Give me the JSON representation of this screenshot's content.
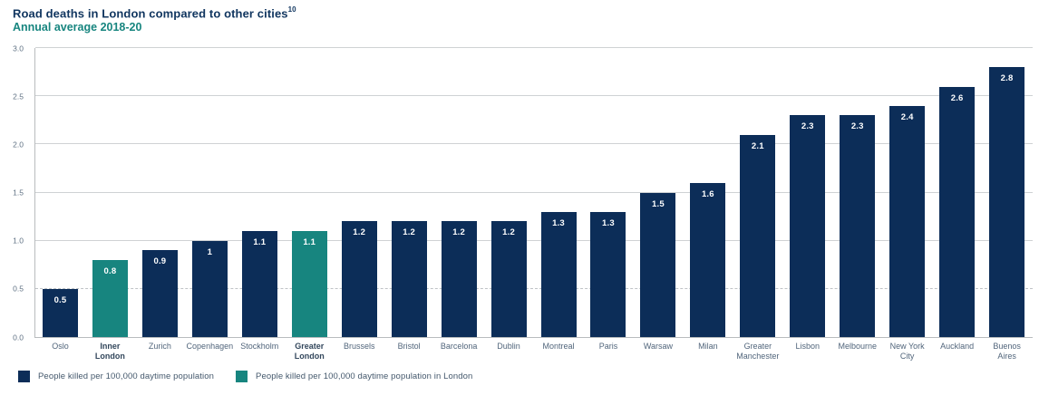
{
  "header": {
    "title": "Road deaths in London compared to other cities",
    "footnote_marker": "10",
    "subtitle": "Annual average 2018-20"
  },
  "colors": {
    "navy": "#0c2d58",
    "teal": "#17857f",
    "title_text": "#10355f",
    "subtitle_text": "#17857f",
    "gridline": "#cfd2d4",
    "axis_line": "#b9bcbe",
    "tick_label": "#5f7183",
    "city_label": "#51657b",
    "bar_value_text": "#ffffff"
  },
  "legend": [
    {
      "label": "People killed per 100,000 daytime population",
      "color": "#0c2d58"
    },
    {
      "label": "People killed per 100,000 daytime population in London",
      "color": "#17857f"
    }
  ],
  "chart_data": {
    "type": "bar",
    "title": "Road deaths in London compared to other cities",
    "subtitle": "Annual average 2018-20",
    "xlabel": "",
    "ylabel": "",
    "ylim": [
      0,
      3.0
    ],
    "ytick_labels": [
      "0.0",
      "0.5",
      "1.0",
      "1.5",
      "2.0",
      "2.5",
      "3.0"
    ],
    "grid": "horizontal",
    "dashed_gridline_value": 0.5,
    "legend_position": "bottom-left",
    "categories": [
      "Oslo",
      "Inner London",
      "Zurich",
      "Copenhagen",
      "Stockholm",
      "Greater London",
      "Brussels",
      "Bristol",
      "Barcelona",
      "Dublin",
      "Montreal",
      "Paris",
      "Warsaw",
      "Milan",
      "Greater Manchester",
      "Lisbon",
      "Melbourne",
      "New York City",
      "Auckland",
      "Buenos Aires"
    ],
    "values": [
      0.5,
      0.8,
      0.9,
      1.0,
      1.1,
      1.1,
      1.2,
      1.2,
      1.2,
      1.2,
      1.3,
      1.3,
      1.5,
      1.6,
      2.1,
      2.3,
      2.3,
      2.4,
      2.6,
      2.8
    ],
    "bar_value_labels": [
      "0.5",
      "0.8",
      "0.9",
      "1",
      "1.1",
      "1.1",
      "1.2",
      "1.2",
      "1.2",
      "1.2",
      "1.3",
      "1.3",
      "1.5",
      "1.6",
      "2.1",
      "2.3",
      "2.3",
      "2.4",
      "2.6",
      "2.8"
    ],
    "category_label_lines": [
      [
        "Oslo"
      ],
      [
        "Inner",
        "London"
      ],
      [
        "Zurich"
      ],
      [
        "Copenhagen"
      ],
      [
        "Stockholm"
      ],
      [
        "Greater",
        "London"
      ],
      [
        "Brussels"
      ],
      [
        "Bristol"
      ],
      [
        "Barcelona"
      ],
      [
        "Dublin"
      ],
      [
        "Montreal"
      ],
      [
        "Paris"
      ],
      [
        "Warsaw"
      ],
      [
        "Milan"
      ],
      [
        "Greater",
        "Manchester"
      ],
      [
        "Lisbon"
      ],
      [
        "Melbourne"
      ],
      [
        "New York",
        "City"
      ],
      [
        "Auckland"
      ],
      [
        "Buenos",
        "Aires"
      ]
    ],
    "london_bar_indexes": [
      1,
      5
    ],
    "series": [
      {
        "name": "People killed per 100,000 daytime population",
        "color": "#0c2d58"
      },
      {
        "name": "People killed per 100,000 daytime population in London",
        "color": "#17857f"
      }
    ]
  }
}
